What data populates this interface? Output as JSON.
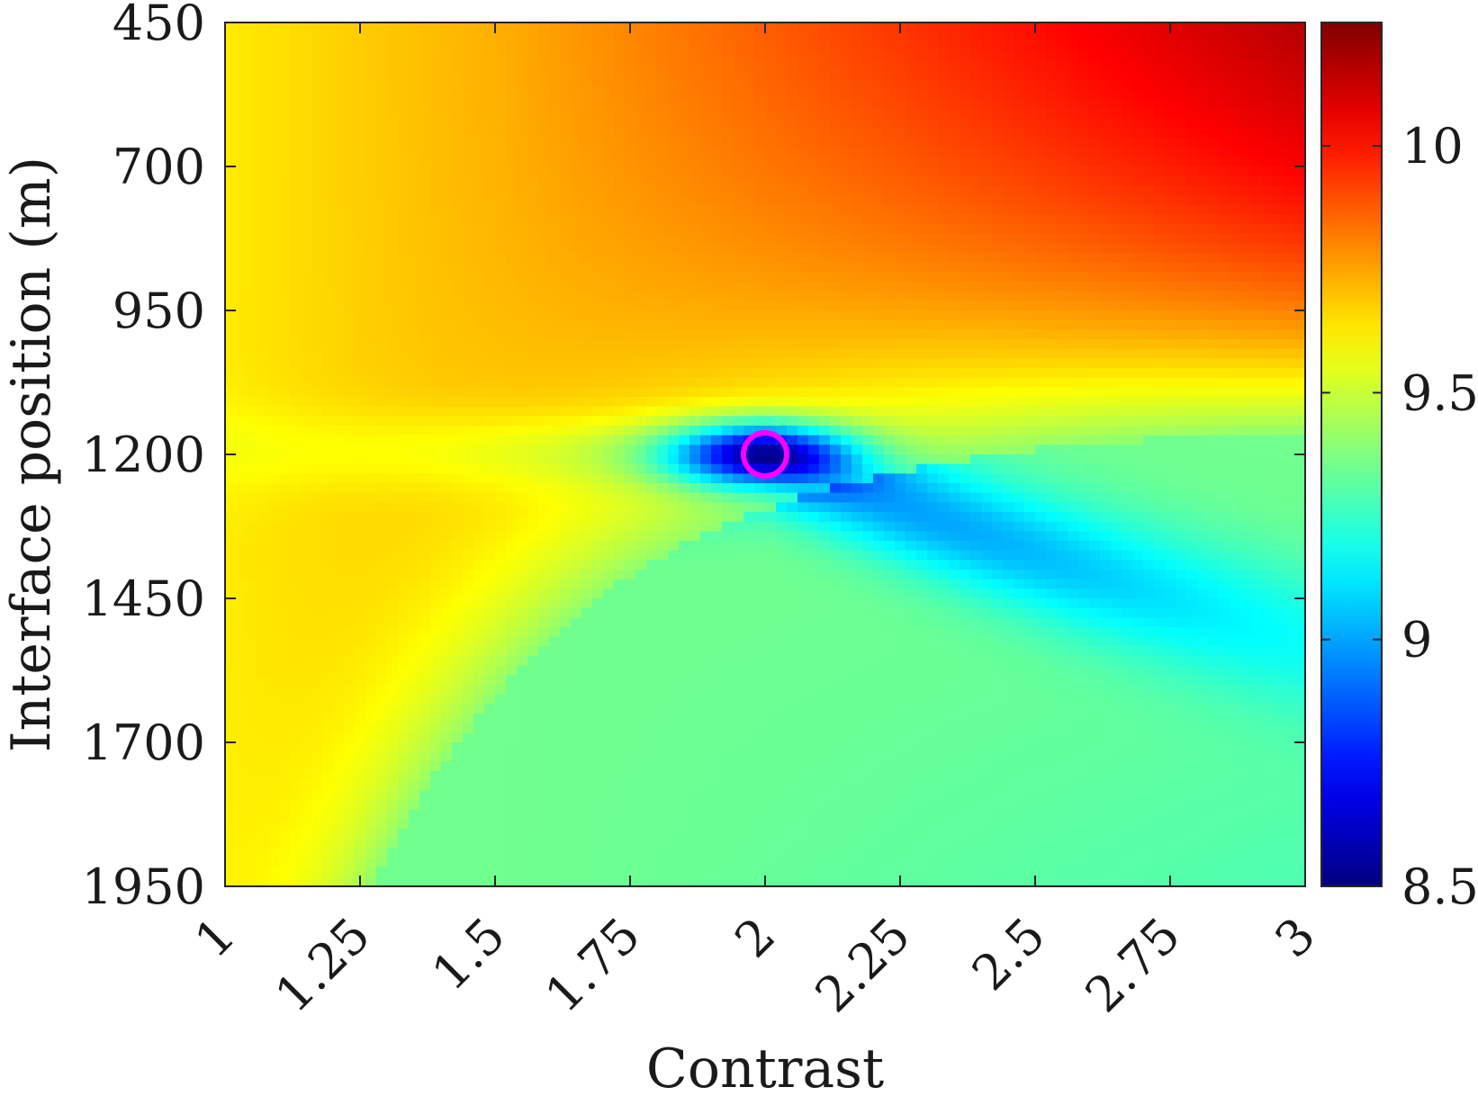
{
  "chart_data": {
    "type": "heatmap",
    "title": "",
    "xlabel": "Contrast",
    "ylabel": "Interface position (m)",
    "xlim": [
      1,
      3
    ],
    "ylim": [
      450,
      1950
    ],
    "y_reversed": true,
    "x_ticks": [
      1,
      1.25,
      1.5,
      1.75,
      2,
      2.25,
      2.5,
      2.75,
      3
    ],
    "x_tick_labels": [
      "1",
      "1.25",
      "1.5",
      "1.75",
      "2",
      "2.25",
      "2.5",
      "2.75",
      "3"
    ],
    "y_ticks": [
      450,
      700,
      950,
      1200,
      1450,
      1700,
      1950
    ],
    "y_tick_labels": [
      "450",
      "700",
      "950",
      "1200",
      "1450",
      "1700",
      "1950"
    ],
    "colorbar": {
      "colormap": "jet",
      "range": [
        8.5,
        10.25
      ],
      "ticks": [
        8.5,
        9,
        9.5,
        10
      ],
      "tick_labels": [
        "8.5",
        "9",
        "9.5",
        "10"
      ]
    },
    "minimum_marker": {
      "x": 2,
      "y": 1200,
      "color": "#ff00ff",
      "shape": "open-circle"
    },
    "surface_description": {
      "background_value": 9.35,
      "ridge_high_region": "upper-right (low interface position, high contrast) up to 10.25",
      "valley_band": "cyan band near 9.1 along the line through (2, 1200) to (3, 1560)",
      "minimum_value": 8.5
    }
  }
}
